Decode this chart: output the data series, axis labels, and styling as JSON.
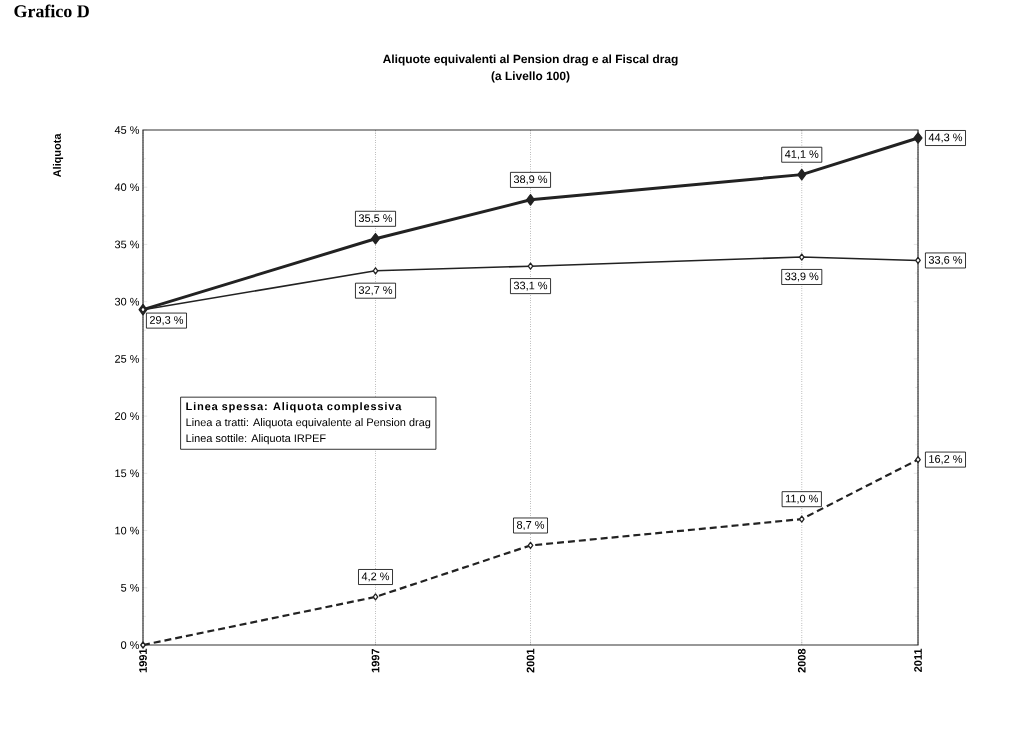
{
  "chart_data": {
    "type": "line",
    "title": "Aliquote equivalenti al Pension drag e al Fiscal drag",
    "subtitle": "(a Livello 100)",
    "ylabel": "Aliquota",
    "annotations": [
      "Grafico D",
      "Linea spessa: Aliquota complessiva",
      "Linea a tratti: Aliquota equivalente al Pension drag",
      "Linea sottile: Aliquota IRPEF"
    ],
    "x": [
      1991,
      1997,
      2001,
      2008,
      2011
    ],
    "xlim": [
      1991,
      2011
    ],
    "xticks": [
      1991,
      1997,
      2001,
      2008,
      2011
    ],
    "ylim": [
      0,
      45
    ],
    "yticks": [
      {
        "value": 0,
        "label": "0 %"
      },
      {
        "value": 5,
        "label": "5 %"
      },
      {
        "value": 10,
        "label": "10 %"
      },
      {
        "value": 15,
        "label": "15 %"
      },
      {
        "value": 20,
        "label": "20 %"
      },
      {
        "value": 25,
        "label": "25 %"
      },
      {
        "value": 30,
        "label": "30 %"
      },
      {
        "value": 35,
        "label": "35 %"
      },
      {
        "value": 40,
        "label": "40 %"
      },
      {
        "value": 45,
        "label": "45 %"
      }
    ],
    "grid": "x",
    "marker": "diamond",
    "series": [
      {
        "color": "#222222",
        "line_style": "solid",
        "values": [
          29.3,
          35.5,
          38.9,
          41.1,
          44.3
        ],
        "value_labels": [
          null,
          "35,5 %",
          "38,9 %",
          "41,1 %",
          "44,3 %"
        ]
      },
      {
        "color": "#222222",
        "line_style": "solid",
        "values": [
          29.3,
          32.7,
          33.1,
          33.9,
          33.6
        ],
        "value_labels": [
          "29,3 %",
          "32,7 %",
          "33,1 %",
          "33,9 %",
          "33,6 %"
        ]
      },
      {
        "color": "#222222",
        "line_style": "dashed",
        "values": [
          0,
          4.2,
          8.7,
          11.0,
          16.2
        ],
        "value_labels": [
          null,
          "4,2 %",
          "8,7 %",
          "11,0 %",
          "16,2 %"
        ]
      }
    ]
  }
}
